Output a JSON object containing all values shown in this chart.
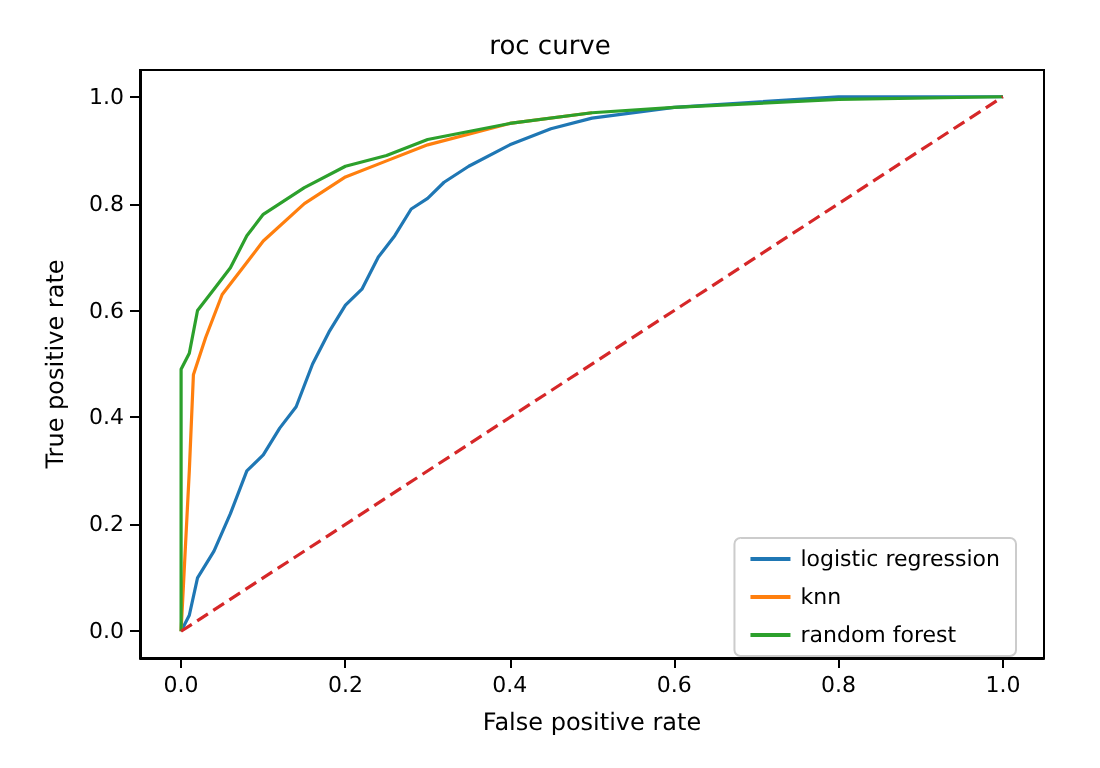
{
  "chart_data": {
    "type": "line",
    "title": "roc curve",
    "xlabel": "False positive rate",
    "ylabel": "True positive rate",
    "xlim": [
      -0.05,
      1.05
    ],
    "ylim": [
      -0.05,
      1.05
    ],
    "xticks": [
      {
        "value": 0,
        "label": "0.0"
      },
      {
        "value": 0.2,
        "label": "0.2"
      },
      {
        "value": 0.4,
        "label": "0.4"
      },
      {
        "value": 0.6,
        "label": "0.6"
      },
      {
        "value": 0.8,
        "label": "0.8"
      },
      {
        "value": 1,
        "label": "1.0"
      }
    ],
    "yticks": [
      {
        "value": 0,
        "label": "0.0"
      },
      {
        "value": 0.2,
        "label": "0.2"
      },
      {
        "value": 0.4,
        "label": "0.4"
      },
      {
        "value": 0.6,
        "label": "0.6"
      },
      {
        "value": 0.8,
        "label": "0.8"
      },
      {
        "value": 1,
        "label": "1.0"
      }
    ],
    "grid": false,
    "legend": "bottom right",
    "marker": "none",
    "series": [
      {
        "name": "logistic regression",
        "color": "#1f77b4",
        "x": [
          0,
          0.01,
          0.02,
          0.04,
          0.06,
          0.08,
          0.1,
          0.12,
          0.14,
          0.16,
          0.18,
          0.2,
          0.22,
          0.24,
          0.26,
          0.28,
          0.3,
          0.32,
          0.35,
          0.4,
          0.45,
          0.5,
          0.6,
          0.7,
          0.8,
          1
        ],
        "values": [
          0,
          0.03,
          0.1,
          0.15,
          0.22,
          0.3,
          0.33,
          0.38,
          0.42,
          0.5,
          0.56,
          0.61,
          0.64,
          0.7,
          0.74,
          0.79,
          0.81,
          0.84,
          0.87,
          0.91,
          0.94,
          0.96,
          0.98,
          0.99,
          1,
          1
        ]
      },
      {
        "name": "knn",
        "color": "#ff7f0e",
        "x": [
          0,
          0.01,
          0.015,
          0.03,
          0.05,
          0.08,
          0.1,
          0.15,
          0.2,
          0.25,
          0.3,
          0.4,
          0.5
        ],
        "values": [
          0,
          0.3,
          0.48,
          0.55,
          0.63,
          0.69,
          0.73,
          0.8,
          0.85,
          0.88,
          0.91,
          0.95,
          0.97
        ]
      },
      {
        "name": "random forest",
        "color": "#2ca02c",
        "x": [
          0,
          0,
          0.01,
          0.02,
          0.04,
          0.06,
          0.08,
          0.1,
          0.15,
          0.2,
          0.25,
          0.3,
          0.4,
          0.5,
          0.6,
          0.8,
          1
        ],
        "values": [
          0,
          0.49,
          0.52,
          0.6,
          0.64,
          0.68,
          0.74,
          0.78,
          0.83,
          0.87,
          0.89,
          0.92,
          0.95,
          0.97,
          0.98,
          0.995,
          1
        ]
      },
      {
        "color": "#d62728",
        "line_style": "dashed",
        "x": [
          0,
          1
        ],
        "values": [
          0,
          1
        ]
      }
    ]
  }
}
